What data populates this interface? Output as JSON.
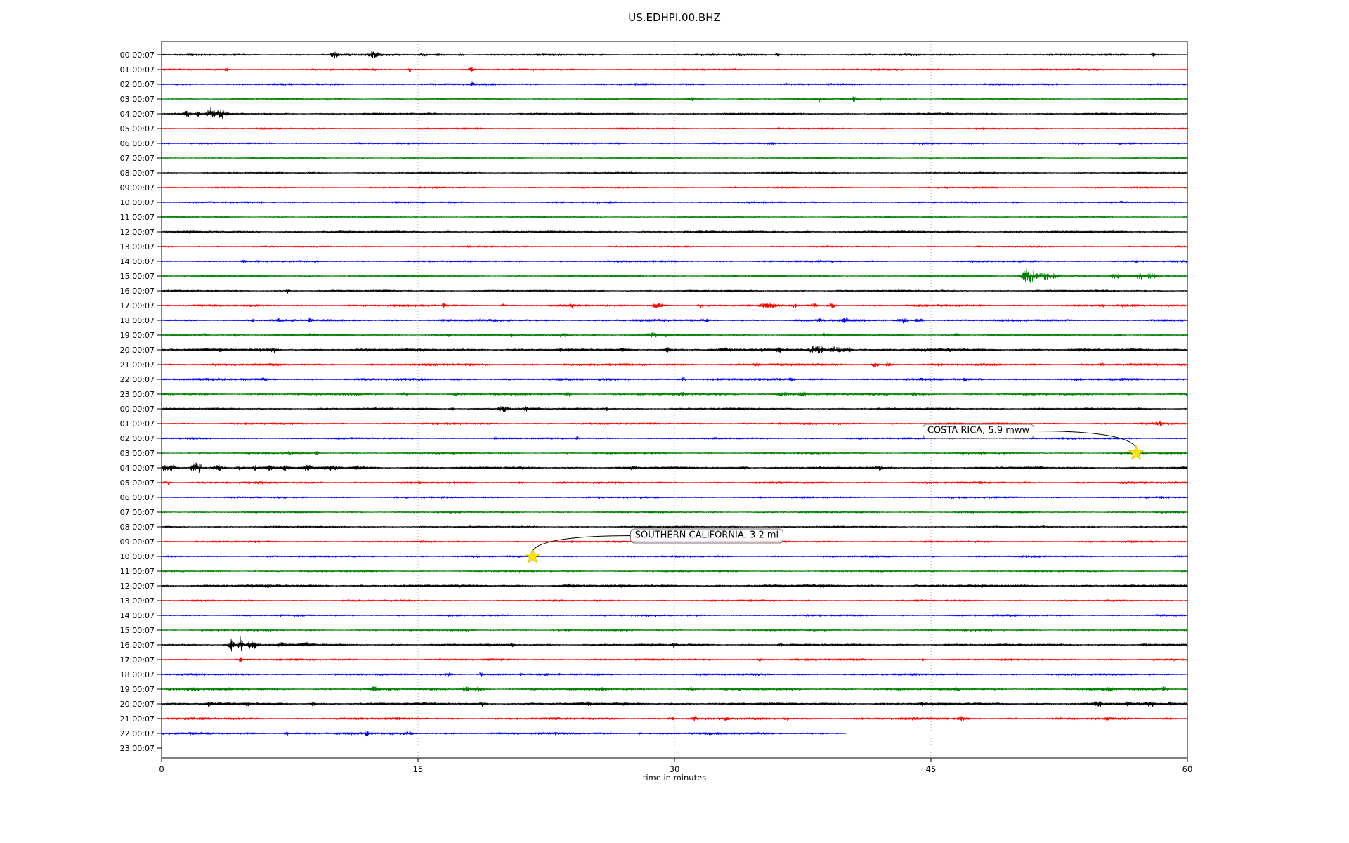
{
  "title": "US.EDHPI.00.BHZ",
  "axes": {
    "xlabel": "time in minutes"
  },
  "colors": {
    "background": "#ffffff",
    "frame": "#000000",
    "grid": "#999999",
    "star": "#ffe600",
    "annotation_border": "#777777",
    "trace_black": "#000000",
    "trace_red": "#ff0000",
    "trace_blue": "#0000ff",
    "trace_green": "#008000"
  },
  "chart_data": {
    "type": "line",
    "subtype": "helicorder_dayplot",
    "title": "US.EDHPI.00.BHZ",
    "xlabel": "time in minutes",
    "x_range_minutes": [
      0,
      60
    ],
    "x_ticks": [
      0,
      15,
      30,
      45,
      60
    ],
    "grid_lines_minutes": [
      15,
      30,
      45
    ],
    "grid_style": "dotted",
    "trace_color_cycle": [
      "#000000",
      "#ff0000",
      "#0000ff",
      "#008000"
    ],
    "rows": [
      {
        "label": "00:00:07",
        "noise": 1.3,
        "events": [
          [
            10.1,
            4,
            0.15
          ],
          [
            12.4,
            5,
            0.2
          ],
          [
            15.3,
            3,
            0.12
          ],
          [
            16.2,
            3,
            0.1
          ],
          [
            17.5,
            2.5,
            0.1
          ],
          [
            36,
            2,
            0.1
          ],
          [
            58,
            2.5,
            0.08
          ]
        ]
      },
      {
        "label": "01:00:07",
        "noise": 1.2,
        "events": [
          [
            3.8,
            2.5,
            0.08
          ],
          [
            14.5,
            2.5,
            0.06
          ],
          [
            18.1,
            3.5,
            0.1
          ]
        ]
      },
      {
        "label": "02:00:07",
        "noise": 1.2,
        "events": [
          [
            18.2,
            2.5,
            0.08
          ],
          [
            36.5,
            2,
            0.06
          ]
        ]
      },
      {
        "label": "03:00:07",
        "noise": 1.2,
        "events": [
          [
            31,
            2.5,
            0.15
          ],
          [
            38.5,
            3.5,
            0.15
          ],
          [
            40.5,
            3,
            0.12
          ],
          [
            42,
            3,
            0.1
          ]
        ]
      },
      {
        "label": "04:00:07",
        "noise": 1.3,
        "events": [
          [
            1.5,
            5,
            0.12
          ],
          [
            2.1,
            4,
            0.1
          ],
          [
            2.9,
            10,
            0.15
          ],
          [
            3.5,
            6,
            0.2
          ]
        ]
      },
      {
        "label": "05:00:07",
        "noise": 1.1,
        "events": []
      },
      {
        "label": "06:00:07",
        "noise": 1.1,
        "events": []
      },
      {
        "label": "07:00:07",
        "noise": 1.1,
        "events": []
      },
      {
        "label": "08:00:07",
        "noise": 1.1,
        "events": []
      },
      {
        "label": "09:00:07",
        "noise": 1.1,
        "events": []
      },
      {
        "label": "10:00:07",
        "noise": 1.1,
        "events": []
      },
      {
        "label": "11:00:07",
        "noise": 1.1,
        "events": []
      },
      {
        "label": "12:00:07",
        "noise": 1.5,
        "events": []
      },
      {
        "label": "13:00:07",
        "noise": 1.1,
        "events": []
      },
      {
        "label": "14:00:07",
        "noise": 1.2,
        "events": [
          [
            4.8,
            2.5,
            0.08
          ],
          [
            57,
            2,
            0.06
          ]
        ]
      },
      {
        "label": "15:00:07",
        "noise": 1.3,
        "events": [
          [
            14,
            2,
            0.1
          ],
          [
            28,
            2,
            0.1
          ],
          [
            33.5,
            2,
            0.1
          ],
          [
            50.7,
            11,
            0.25
          ],
          [
            51.8,
            5,
            0.5
          ],
          [
            55.8,
            3.5,
            0.2
          ],
          [
            57.2,
            4,
            0.15
          ],
          [
            57.9,
            3.5,
            0.2
          ]
        ]
      },
      {
        "label": "16:00:07",
        "noise": 1.3,
        "events": [
          [
            7.4,
            3.5,
            0.08
          ]
        ]
      },
      {
        "label": "17:00:07",
        "noise": 1.4,
        "events": [
          [
            16.5,
            2.5,
            0.1
          ],
          [
            20,
            2.5,
            0.1
          ],
          [
            24,
            2,
            0.1
          ],
          [
            29,
            3,
            0.25
          ],
          [
            31.5,
            2.5,
            0.1
          ],
          [
            35.5,
            3,
            0.3
          ],
          [
            37,
            3,
            0.1
          ],
          [
            38.2,
            3.5,
            0.1
          ],
          [
            39.2,
            4,
            0.1
          ],
          [
            55,
            2,
            0.1
          ]
        ]
      },
      {
        "label": "18:00:07",
        "noise": 1.4,
        "events": [
          [
            5.3,
            2.5,
            0.1
          ],
          [
            6.8,
            3,
            0.1
          ],
          [
            8.7,
            2.5,
            0.1
          ],
          [
            31.8,
            2.5,
            0.1
          ],
          [
            38.5,
            3,
            0.12
          ],
          [
            40,
            4,
            0.12
          ],
          [
            43.3,
            3.5,
            0.2
          ],
          [
            44.3,
            3,
            0.15
          ]
        ]
      },
      {
        "label": "19:00:07",
        "noise": 1.4,
        "events": [
          [
            2.5,
            2.5,
            0.15
          ],
          [
            4.3,
            2.5,
            0.1
          ],
          [
            8.8,
            2.5,
            0.15
          ],
          [
            16.8,
            2.5,
            0.1
          ],
          [
            20.5,
            2.5,
            0.1
          ],
          [
            23.5,
            2.5,
            0.3
          ],
          [
            28.7,
            3.5,
            0.2
          ],
          [
            29.5,
            2.5,
            0.15
          ],
          [
            38.8,
            3,
            0.15
          ],
          [
            46.5,
            2.5,
            0.1
          ],
          [
            56,
            2.5,
            0.1
          ]
        ]
      },
      {
        "label": "20:00:07",
        "noise": 1.8,
        "events": [
          [
            6.5,
            3,
            0.2
          ],
          [
            26.9,
            3,
            0.1
          ],
          [
            29.6,
            3.5,
            0.1
          ],
          [
            32.9,
            3,
            0.15
          ],
          [
            36.1,
            3,
            0.1
          ],
          [
            38.3,
            6,
            0.3
          ],
          [
            39.5,
            6,
            0.25
          ],
          [
            40.2,
            4,
            0.15
          ],
          [
            46,
            2.5,
            0.1
          ]
        ]
      },
      {
        "label": "21:00:07",
        "noise": 1.5,
        "events": [
          [
            34.8,
            3,
            0.1
          ],
          [
            41.7,
            3.5,
            0.15
          ],
          [
            42.5,
            3,
            0.1
          ],
          [
            55,
            2,
            0.1
          ]
        ]
      },
      {
        "label": "22:00:07",
        "noise": 1.5,
        "events": [
          [
            6,
            2.5,
            0.1
          ],
          [
            30.5,
            3,
            0.1
          ],
          [
            36.8,
            2.5,
            0.1
          ],
          [
            47,
            2,
            0.1
          ]
        ]
      },
      {
        "label": "23:00:07",
        "noise": 1.5,
        "events": [
          [
            14.2,
            2.5,
            0.1
          ],
          [
            17.2,
            3,
            0.08
          ],
          [
            19.5,
            2,
            0.1
          ],
          [
            23.8,
            3.5,
            0.08
          ],
          [
            28,
            2.5,
            0.1
          ],
          [
            30.5,
            2.5,
            0.15
          ],
          [
            36.5,
            3,
            0.3
          ],
          [
            37.5,
            3,
            0.2
          ],
          [
            44,
            2.5,
            0.1
          ]
        ]
      },
      {
        "label": "00:00:07",
        "noise": 1.4,
        "events": [
          [
            15.1,
            2.5,
            0.06
          ],
          [
            17,
            2,
            0.1
          ],
          [
            20,
            4,
            0.25
          ],
          [
            21.3,
            3.5,
            0.1
          ],
          [
            26,
            2,
            0.1
          ]
        ]
      },
      {
        "label": "01:00:07",
        "noise": 1.3,
        "events": [
          [
            58.4,
            3.5,
            0.1
          ]
        ]
      },
      {
        "label": "02:00:07",
        "noise": 1.2,
        "events": [
          [
            19.5,
            2,
            0.08
          ],
          [
            24.3,
            2.5,
            0.08
          ]
        ]
      },
      {
        "label": "03:00:07",
        "noise": 1.2,
        "events": [
          [
            7.5,
            3.5,
            0.1
          ],
          [
            9.1,
            3,
            0.08
          ],
          [
            48,
            2.5,
            0.1
          ],
          [
            57,
            1.8,
            0.3
          ]
        ]
      },
      {
        "label": "04:00:07",
        "noise": 1.6,
        "events": [
          [
            0.2,
            8,
            0.1
          ],
          [
            0.6,
            4,
            0.15
          ],
          [
            1.9,
            11,
            0.12
          ],
          [
            2.2,
            8,
            0.1
          ],
          [
            3.3,
            4,
            0.2
          ],
          [
            4.5,
            3,
            0.2
          ],
          [
            5.5,
            3.5,
            0.15
          ],
          [
            6.3,
            3.5,
            0.15
          ],
          [
            7.2,
            4,
            0.15
          ],
          [
            8.5,
            3,
            0.2
          ],
          [
            10,
            3,
            0.3
          ],
          [
            11.5,
            2.5,
            0.3
          ],
          [
            27.5,
            2,
            0.2
          ],
          [
            34,
            2.5,
            0.2
          ],
          [
            42,
            2,
            0.15
          ]
        ]
      },
      {
        "label": "05:00:07",
        "noise": 1.4,
        "events": [
          [
            0.3,
            3,
            0.1
          ],
          [
            21,
            2,
            0.1
          ]
        ]
      },
      {
        "label": "06:00:07",
        "noise": 1.2,
        "events": []
      },
      {
        "label": "07:00:07",
        "noise": 1.2,
        "events": []
      },
      {
        "label": "08:00:07",
        "noise": 1.2,
        "events": []
      },
      {
        "label": "09:00:07",
        "noise": 1.2,
        "events": []
      },
      {
        "label": "10:00:07",
        "noise": 1.2,
        "events": [
          [
            21.7,
            1.5,
            0.1
          ]
        ]
      },
      {
        "label": "11:00:07",
        "noise": 1.2,
        "events": []
      },
      {
        "label": "12:00:07",
        "noise": 1.7,
        "events": [
          [
            24,
            2,
            0.3
          ]
        ]
      },
      {
        "label": "13:00:07",
        "noise": 1.2,
        "events": []
      },
      {
        "label": "14:00:07",
        "noise": 1.2,
        "events": []
      },
      {
        "label": "15:00:07",
        "noise": 1.2,
        "events": []
      },
      {
        "label": "16:00:07",
        "noise": 1.5,
        "events": [
          [
            4.1,
            9,
            0.12
          ],
          [
            4.6,
            13,
            0.08
          ],
          [
            5.3,
            6,
            0.2
          ],
          [
            7,
            3,
            0.15
          ],
          [
            8.5,
            3,
            0.2
          ],
          [
            20.5,
            2.5,
            0.1
          ],
          [
            30,
            3,
            0.15
          ],
          [
            36.2,
            3,
            0.1
          ],
          [
            46,
            2.5,
            0.1
          ],
          [
            57.5,
            2.5,
            0.1
          ]
        ]
      },
      {
        "label": "17:00:07",
        "noise": 1.3,
        "events": [
          [
            4.6,
            4,
            0.06
          ],
          [
            35,
            2,
            0.1
          ],
          [
            44.5,
            2,
            0.1
          ]
        ]
      },
      {
        "label": "18:00:07",
        "noise": 1.3,
        "events": [
          [
            16.8,
            3,
            0.12
          ],
          [
            18.7,
            3.5,
            0.12
          ],
          [
            21,
            2,
            0.1
          ]
        ]
      },
      {
        "label": "19:00:07",
        "noise": 1.5,
        "events": [
          [
            1.8,
            3,
            0.2
          ],
          [
            12.4,
            3.5,
            0.15
          ],
          [
            17.8,
            3.5,
            0.2
          ],
          [
            18.5,
            3,
            0.15
          ],
          [
            25.8,
            3,
            0.2
          ],
          [
            31,
            2.5,
            0.15
          ],
          [
            46.5,
            2.5,
            0.1
          ],
          [
            55.4,
            3,
            0.15
          ],
          [
            58.6,
            3,
            0.15
          ]
        ]
      },
      {
        "label": "20:00:07",
        "noise": 1.7,
        "events": [
          [
            2.8,
            3.5,
            0.1
          ],
          [
            5,
            2.5,
            0.1
          ],
          [
            8.8,
            3,
            0.1
          ],
          [
            18.8,
            3,
            0.1
          ],
          [
            25,
            2.5,
            0.1
          ],
          [
            44.5,
            2.5,
            0.1
          ],
          [
            54.8,
            3.5,
            0.15
          ],
          [
            56.5,
            3,
            0.1
          ],
          [
            57.8,
            3.5,
            0.15
          ],
          [
            59,
            3,
            0.1
          ]
        ]
      },
      {
        "label": "21:00:07",
        "noise": 1.5,
        "events": [
          [
            29.8,
            4,
            0.1
          ],
          [
            31.2,
            3,
            0.1
          ],
          [
            33,
            3,
            0.1
          ],
          [
            36.5,
            2.5,
            0.1
          ],
          [
            46.8,
            2.5,
            0.1
          ],
          [
            55.3,
            2.5,
            0.1
          ]
        ]
      },
      {
        "label": "22:00:07",
        "noise": 1.5,
        "end_minute": 40,
        "events": [
          [
            7.3,
            2.5,
            0.1
          ],
          [
            12,
            3,
            0.1
          ],
          [
            14.5,
            2.5,
            0.15
          ],
          [
            28,
            2,
            0.1
          ]
        ]
      },
      {
        "label": "23:00:07",
        "noise": 0,
        "end_minute": 0,
        "events": []
      }
    ],
    "annotations": [
      {
        "label": "COSTA RICA, 5.9 mww",
        "row_index": 27,
        "row_label": "03:00:07",
        "event_minute": 57.0,
        "marker": "yellow-star",
        "box": {
          "minute": 44.5,
          "row": 25.5
        }
      },
      {
        "label": "SOUTHERN CALIFORNIA, 3.2 ml",
        "row_index": 34,
        "row_label": "10:00:07",
        "event_minute": 21.7,
        "marker": "yellow-star",
        "box": {
          "minute": 27.4,
          "row": 32.6
        }
      }
    ]
  }
}
